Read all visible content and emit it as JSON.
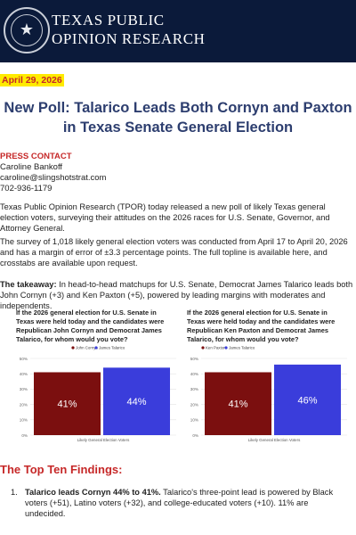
{
  "header": {
    "org_line1": "TEXAS PUBLIC",
    "org_line2": "OPINION RESEARCH",
    "colors": {
      "background": "#0b1a3a",
      "text": "#ffffff"
    }
  },
  "date": "April 29, 2026",
  "title": "New Poll: Talarico Leads Both Cornyn and Paxton in Texas Senate General Election",
  "press_contact": {
    "label": "PRESS CONTACT",
    "name": "Caroline Bankoff",
    "email": "caroline@slingshotstrat.com",
    "phone": "702-936-1179"
  },
  "paragraphs": {
    "intro": "Texas Public Opinion Research (TPOR) today released a new poll of likely Texas general election voters, surveying their attitudes on the 2026 races for U.S. Senate, Governor, and Attorney General.",
    "methodology": "The survey of 1,018 likely general election voters was conducted from April 17 to April 20, 2026 and has a margin of error of ±3.3 percentage points. The full topline is available here, and crosstabs are available upon request.",
    "takeaway_label": "The takeaway:",
    "takeaway_text": " In head-to-head matchups for U.S. Senate, Democrat James Talarico leads both John Cornyn (+3) and Ken Paxton (+5), powered by leading margins with moderates and independents."
  },
  "chart_data": [
    {
      "type": "bar",
      "title": "If the 2026 general election for U.S. Senate in Texas were held today and the candidates were Republican John Cornyn and Democrat James Talarico, for whom would you vote?",
      "xlabel": "Likely General Election Voters",
      "categories": [
        "Likely General Election Voters"
      ],
      "series": [
        {
          "name": "John Cornyn",
          "values": [
            41
          ],
          "color": "#7b0f0f",
          "label": "41%"
        },
        {
          "name": "James Talarico",
          "values": [
            44
          ],
          "color": "#3a3ddb",
          "label": "44%"
        }
      ],
      "yticks": [
        "0%",
        "10%",
        "20%",
        "30%",
        "40%",
        "50%"
      ],
      "ylim": [
        0,
        50
      ],
      "grid": true,
      "legend": "top-center"
    },
    {
      "type": "bar",
      "title": "If the 2026 general election for U.S. Senate in Texas were held today and the candidates were Republican Ken Paxton and Democrat James Talarico, for whom would you vote?",
      "xlabel": "Likely General Election Voters",
      "categories": [
        "Likely General Election Voters"
      ],
      "series": [
        {
          "name": "Ken Paxton",
          "values": [
            41
          ],
          "color": "#7b0f0f",
          "label": "41%"
        },
        {
          "name": "James Talarico",
          "values": [
            46
          ],
          "color": "#3a3ddb",
          "label": "46%"
        }
      ],
      "yticks": [
        "0%",
        "10%",
        "20%",
        "30%",
        "40%",
        "50%"
      ],
      "ylim": [
        0,
        50
      ],
      "grid": true,
      "legend": "top-left"
    }
  ],
  "findings": {
    "title": "The Top Ten Findings:",
    "items": [
      {
        "number": "1.",
        "bold": "Talarico leads Cornyn 44% to 41%.",
        "text": " Talarico's three-point lead is powered by Black voters (+51), Latino voters (+32), and college-educated voters (+10). 11% are undecided."
      }
    ]
  }
}
